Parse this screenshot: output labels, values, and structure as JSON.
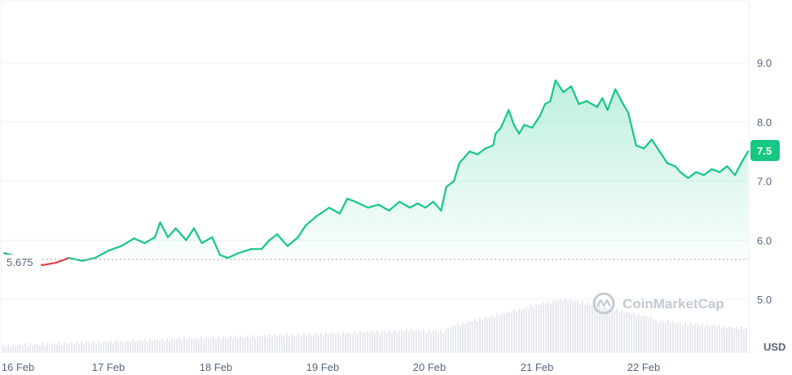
{
  "chart_data": {
    "type": "area",
    "title": "",
    "xlabel": "",
    "ylabel": "",
    "currency_label": "USD",
    "ylim": [
      4.3,
      10.0
    ],
    "y_ticks": [
      "5.0",
      "6.0",
      "7.0",
      "8.0",
      "9.0"
    ],
    "x_ticks": [
      "16 Feb",
      "17 Feb",
      "18 Feb",
      "19 Feb",
      "20 Feb",
      "21 Feb",
      "22 Feb"
    ],
    "reference_value": "5.675",
    "current_value": "7.5",
    "watermark": "CoinMarketCap",
    "colors": {
      "up": "#16c784",
      "down": "#ea3943",
      "grid": "#eff2f5",
      "badge": "#16c784"
    },
    "series": [
      {
        "values": [
          [
            0,
            5.78
          ],
          [
            0.3,
            5.75
          ],
          [
            0.5,
            5.55
          ],
          [
            1.0,
            5.6
          ],
          [
            1.5,
            5.58
          ],
          [
            2.0,
            5.62
          ],
          [
            2.5,
            5.7
          ],
          [
            3.0,
            5.65
          ],
          [
            3.5,
            5.7
          ],
          [
            4.0,
            5.82
          ],
          [
            4.5,
            5.9
          ],
          [
            5.0,
            6.03
          ],
          [
            5.4,
            5.95
          ],
          [
            5.8,
            6.05
          ],
          [
            6.0,
            6.3
          ],
          [
            6.3,
            6.05
          ],
          [
            6.6,
            6.2
          ],
          [
            7.0,
            6.0
          ],
          [
            7.3,
            6.2
          ],
          [
            7.6,
            5.95
          ],
          [
            8.0,
            6.05
          ],
          [
            8.3,
            5.75
          ],
          [
            8.6,
            5.7
          ],
          [
            9.0,
            5.78
          ],
          [
            9.5,
            5.85
          ],
          [
            9.9,
            5.85
          ],
          [
            10.2,
            6.0
          ],
          [
            10.5,
            6.1
          ],
          [
            10.9,
            5.9
          ],
          [
            11.3,
            6.05
          ],
          [
            11.6,
            6.25
          ],
          [
            12.0,
            6.4
          ],
          [
            12.5,
            6.55
          ],
          [
            12.9,
            6.45
          ],
          [
            13.2,
            6.7
          ],
          [
            13.5,
            6.65
          ],
          [
            14.0,
            6.55
          ],
          [
            14.4,
            6.6
          ],
          [
            14.8,
            6.5
          ],
          [
            15.2,
            6.65
          ],
          [
            15.6,
            6.55
          ],
          [
            15.9,
            6.62
          ],
          [
            16.2,
            6.55
          ],
          [
            16.5,
            6.65
          ],
          [
            16.8,
            6.5
          ],
          [
            17.0,
            6.9
          ],
          [
            17.3,
            7.0
          ],
          [
            17.5,
            7.3
          ],
          [
            17.9,
            7.5
          ],
          [
            18.2,
            7.45
          ],
          [
            18.5,
            7.55
          ],
          [
            18.8,
            7.6
          ],
          [
            18.9,
            7.8
          ],
          [
            19.1,
            7.9
          ],
          [
            19.4,
            8.2
          ],
          [
            19.6,
            7.95
          ],
          [
            19.8,
            7.8
          ],
          [
            20.0,
            7.95
          ],
          [
            20.3,
            7.9
          ],
          [
            20.6,
            8.1
          ],
          [
            20.8,
            8.3
          ],
          [
            21.0,
            8.35
          ],
          [
            21.2,
            8.7
          ],
          [
            21.5,
            8.5
          ],
          [
            21.8,
            8.6
          ],
          [
            22.1,
            8.3
          ],
          [
            22.4,
            8.35
          ],
          [
            22.8,
            8.25
          ],
          [
            23.0,
            8.4
          ],
          [
            23.2,
            8.2
          ],
          [
            23.5,
            8.55
          ],
          [
            23.8,
            8.3
          ],
          [
            24.0,
            8.15
          ],
          [
            24.3,
            7.6
          ],
          [
            24.6,
            7.55
          ],
          [
            24.9,
            7.7
          ],
          [
            25.2,
            7.5
          ],
          [
            25.5,
            7.3
          ],
          [
            25.8,
            7.25
          ],
          [
            26.0,
            7.15
          ],
          [
            26.3,
            7.05
          ],
          [
            26.6,
            7.15
          ],
          [
            26.9,
            7.1
          ],
          [
            27.2,
            7.2
          ],
          [
            27.5,
            7.15
          ],
          [
            27.8,
            7.25
          ],
          [
            28.1,
            7.1
          ],
          [
            28.4,
            7.35
          ],
          [
            28.6,
            7.5
          ]
        ]
      }
    ],
    "volume_note": "volume bars at bottom"
  }
}
